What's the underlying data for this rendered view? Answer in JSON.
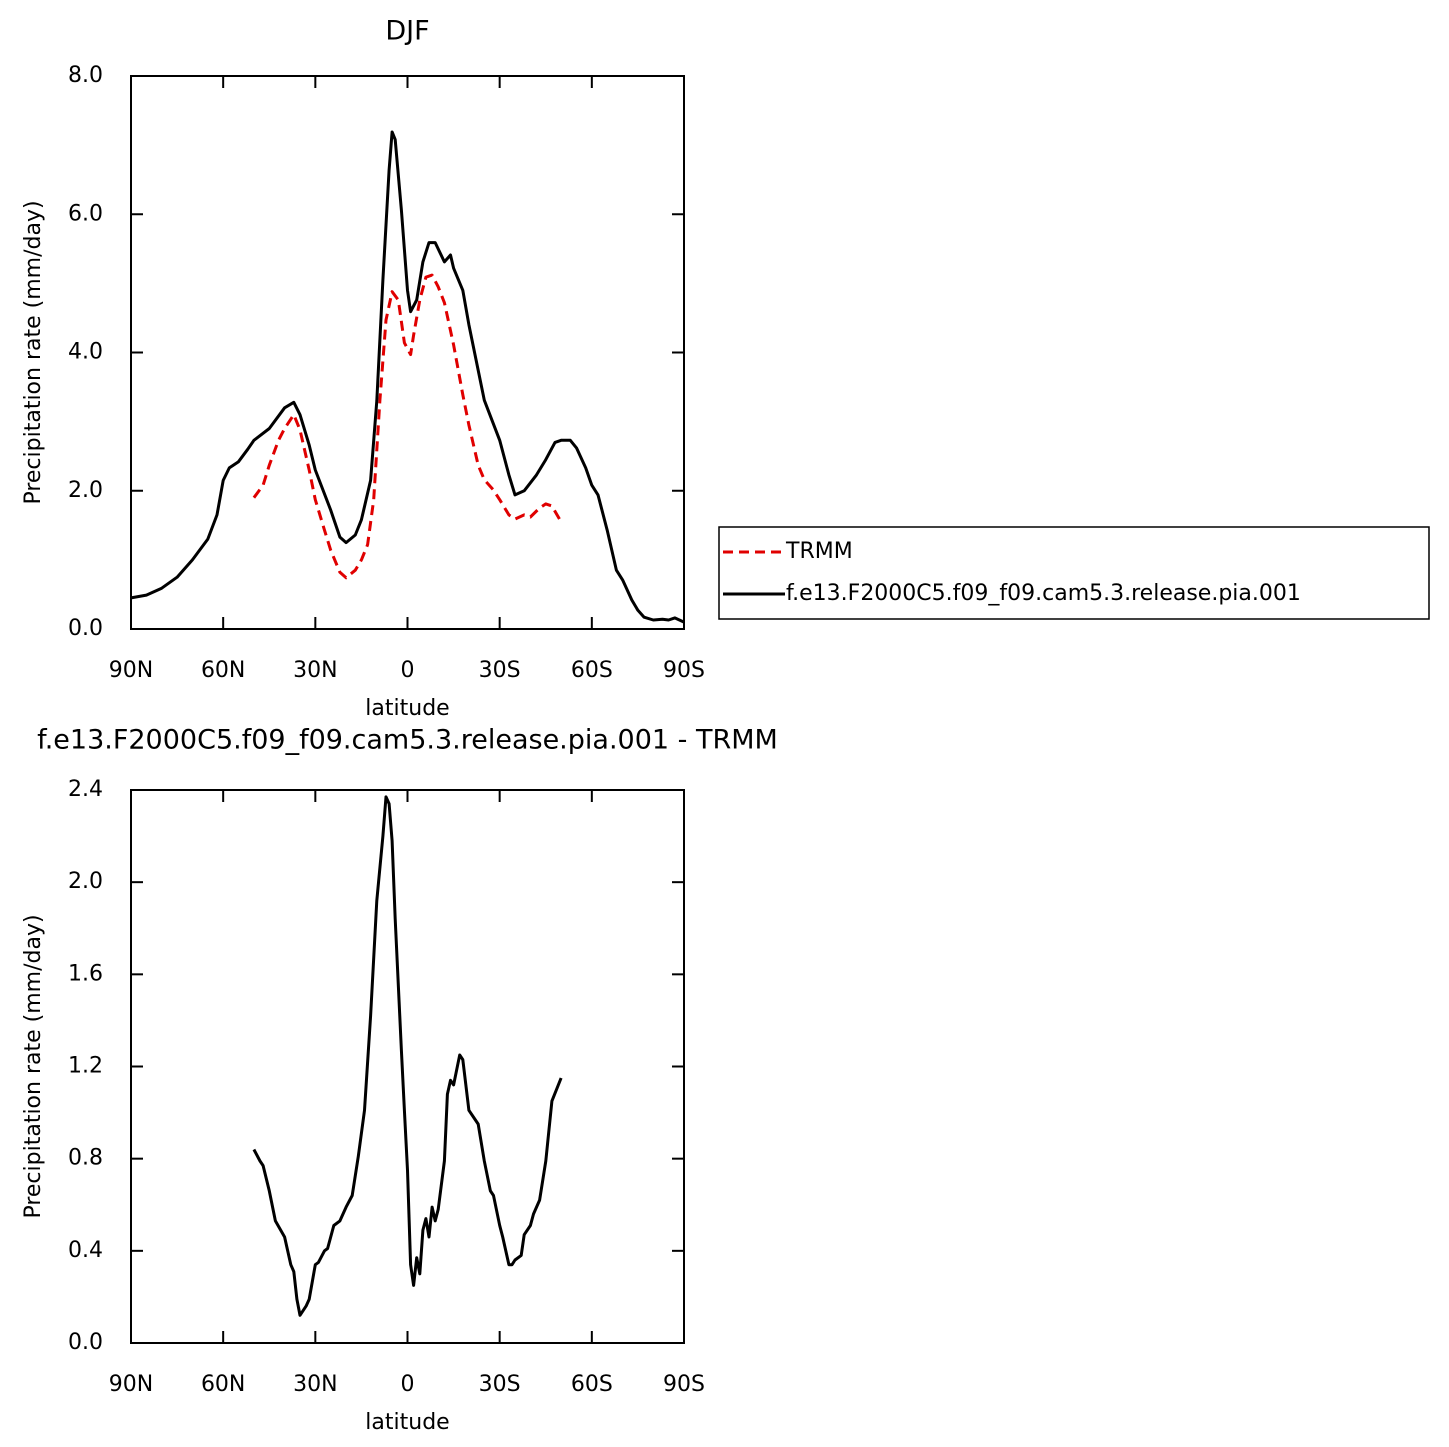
{
  "chart_data": [
    {
      "type": "line",
      "title": "DJF",
      "xlabel": "latitude",
      "ylabel": "Precipitation rate (mm/day)",
      "xlim": [
        90,
        -90
      ],
      "ylim": [
        0,
        8
      ],
      "xticks": [
        {
          "value": 90,
          "label": "90N"
        },
        {
          "value": 60,
          "label": "60N"
        },
        {
          "value": 30,
          "label": "30N"
        },
        0,
        {
          "value": -30,
          "label": "30S"
        },
        {
          "value": -60,
          "label": "60S"
        },
        {
          "value": -90,
          "label": "90S"
        }
      ],
      "yticks": [
        {
          "value": 0,
          "label": "0.0"
        },
        {
          "value": 2,
          "label": "2.0"
        },
        {
          "value": 4,
          "label": "4.0"
        },
        {
          "value": 6,
          "label": "6.0"
        },
        {
          "value": 8,
          "label": "8.0"
        }
      ],
      "legend": "right",
      "series": [
        {
          "name": "TRMM",
          "color": "#e00000",
          "dashed": true,
          "x": [
            50,
            47,
            45,
            42,
            40,
            37,
            35,
            32,
            30,
            27,
            25,
            22,
            20,
            17,
            15,
            13,
            11,
            9,
            7,
            5,
            3,
            1,
            -1,
            -2,
            -4,
            -6,
            -8,
            -10,
            -12,
            -15,
            -18,
            -20,
            -23,
            -25,
            -28,
            -30,
            -33,
            -35,
            -38,
            -40,
            -43,
            -45,
            -47,
            -50
          ],
          "values": [
            1.9,
            2.08,
            2.37,
            2.73,
            2.9,
            3.1,
            2.88,
            2.3,
            1.87,
            1.43,
            1.14,
            0.82,
            0.74,
            0.85,
            1.0,
            1.22,
            1.87,
            3.31,
            4.47,
            4.88,
            4.76,
            4.14,
            3.97,
            4.25,
            4.76,
            5.09,
            5.12,
            4.95,
            4.72,
            4.11,
            3.39,
            2.95,
            2.37,
            2.16,
            2.01,
            1.87,
            1.65,
            1.59,
            1.65,
            1.62,
            1.75,
            1.81,
            1.78,
            1.55
          ]
        },
        {
          "name": "f.e13.F2000C5.f09_f09.cam5.3.release.pia.001",
          "color": "#000000",
          "dashed": false,
          "x": [
            90,
            85,
            80,
            75,
            70,
            65,
            62,
            60,
            58,
            55,
            52,
            50,
            45,
            40,
            37,
            35,
            32,
            30,
            25,
            22,
            20,
            17,
            15,
            12,
            10,
            8,
            6,
            5,
            4,
            2,
            0,
            -1,
            -3,
            -5,
            -7,
            -9,
            -12,
            -14,
            -15,
            -18,
            -20,
            -25,
            -30,
            -33,
            -35,
            -38,
            -42,
            -45,
            -48,
            -50,
            -53,
            -55,
            -58,
            -60,
            -62,
            -65,
            -68,
            -70,
            -73,
            -75,
            -77,
            -80,
            -83,
            -85,
            -87,
            -90
          ],
          "values": [
            0.45,
            0.49,
            0.59,
            0.75,
            1.0,
            1.3,
            1.65,
            2.15,
            2.33,
            2.42,
            2.6,
            2.73,
            2.9,
            3.2,
            3.28,
            3.1,
            2.66,
            2.3,
            1.72,
            1.33,
            1.25,
            1.36,
            1.58,
            2.15,
            3.3,
            5.05,
            6.64,
            7.19,
            7.08,
            6.06,
            4.9,
            4.59,
            4.76,
            5.31,
            5.59,
            5.59,
            5.31,
            5.41,
            5.22,
            4.9,
            4.4,
            3.31,
            2.73,
            2.23,
            1.94,
            2.0,
            2.23,
            2.45,
            2.7,
            2.73,
            2.73,
            2.62,
            2.33,
            2.08,
            1.94,
            1.43,
            0.85,
            0.71,
            0.42,
            0.27,
            0.17,
            0.13,
            0.14,
            0.13,
            0.16,
            0.1
          ]
        }
      ]
    },
    {
      "type": "line",
      "title": "f.e13.F2000C5.f09_f09.cam5.3.release.pia.001 - TRMM",
      "xlabel": "latitude",
      "ylabel": "Precipitation rate (mm/day)",
      "xlim": [
        90,
        -90
      ],
      "ylim": [
        0,
        2.4
      ],
      "xticks": [
        {
          "value": 90,
          "label": "90N"
        },
        {
          "value": 60,
          "label": "60N"
        },
        {
          "value": 30,
          "label": "30N"
        },
        0,
        {
          "value": -30,
          "label": "30S"
        },
        {
          "value": -60,
          "label": "60S"
        },
        {
          "value": -90,
          "label": "90S"
        }
      ],
      "yticks": [
        {
          "value": 0,
          "label": "0.0"
        },
        0.4,
        0.8,
        1.2,
        1.6,
        {
          "value": 2,
          "label": "2.0"
        },
        2.4
      ],
      "series": [
        {
          "color": "#000000",
          "dashed": false,
          "x": [
            50,
            48,
            47,
            45,
            43,
            40,
            38,
            37,
            36,
            35,
            33,
            32,
            30,
            29,
            27,
            26,
            24,
            22,
            20,
            18,
            16,
            14,
            12,
            10,
            8,
            7,
            6,
            5,
            4,
            2,
            1,
            0,
            -1,
            -2,
            -3,
            -4,
            -5,
            -6,
            -7,
            -8,
            -9,
            -10,
            -12,
            -13,
            -14,
            -15,
            -17,
            -18,
            -20,
            -22,
            -23,
            -25,
            -27,
            -28,
            -30,
            -31,
            -33,
            -34,
            -35,
            -37,
            -38,
            -40,
            -41,
            -43,
            -45,
            -47,
            -50
          ],
          "values": [
            0.84,
            0.79,
            0.77,
            0.66,
            0.53,
            0.46,
            0.34,
            0.31,
            0.19,
            0.12,
            0.16,
            0.19,
            0.34,
            0.35,
            0.4,
            0.41,
            0.51,
            0.53,
            0.59,
            0.64,
            0.81,
            1.01,
            1.42,
            1.92,
            2.2,
            2.37,
            2.34,
            2.18,
            1.84,
            1.27,
            1.01,
            0.75,
            0.34,
            0.25,
            0.37,
            0.3,
            0.49,
            0.54,
            0.46,
            0.59,
            0.53,
            0.58,
            0.79,
            1.08,
            1.14,
            1.12,
            1.25,
            1.23,
            1.01,
            0.97,
            0.95,
            0.79,
            0.66,
            0.64,
            0.51,
            0.46,
            0.34,
            0.34,
            0.36,
            0.38,
            0.47,
            0.51,
            0.56,
            0.62,
            0.79,
            1.05,
            1.15
          ]
        }
      ]
    }
  ]
}
